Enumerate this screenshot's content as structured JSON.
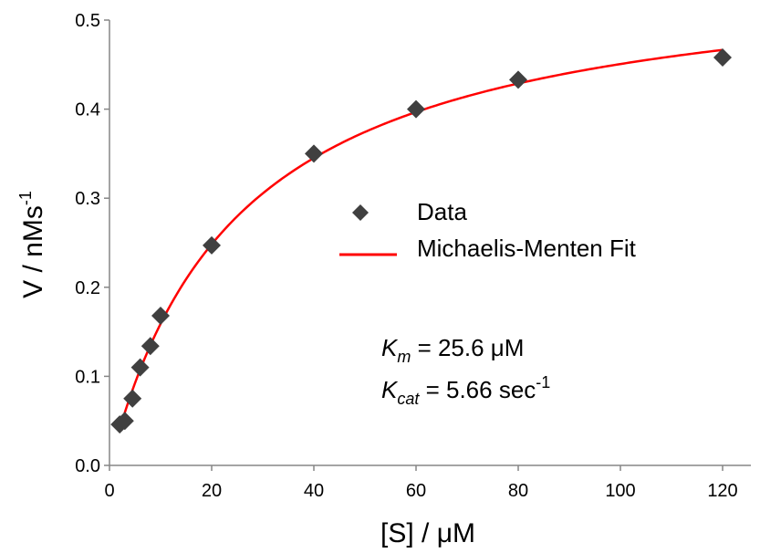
{
  "chart_data": {
    "type": "scatter",
    "title": "",
    "xlabel": "[S]  /  μM",
    "ylabel": {
      "main": "V / nMs",
      "sup": "-1"
    },
    "xlim": [
      0,
      125
    ],
    "ylim": [
      0,
      0.5
    ],
    "xticks": [
      0,
      20,
      40,
      60,
      80,
      100,
      120
    ],
    "yticks": [
      "0.0",
      "0.1",
      "0.2",
      "0.3",
      "0.4",
      "0.5"
    ],
    "grid": false,
    "legend_position": "center-right",
    "series": [
      {
        "name": "Data",
        "kind": "points",
        "marker": "diamond",
        "color": "#404040",
        "x": [
          2,
          3,
          4.5,
          6,
          8,
          10,
          20,
          40,
          60,
          80,
          120
        ],
        "y": [
          0.046,
          0.05,
          0.075,
          0.11,
          0.134,
          0.168,
          0.247,
          0.35,
          0.4,
          0.433,
          0.458
        ]
      },
      {
        "name": "Michaelis-Menten Fit",
        "kind": "line",
        "color": "#ff0000",
        "model": {
          "vmax": 0.566,
          "km": 25.6,
          "x_range": [
            2,
            120
          ]
        }
      }
    ],
    "annotations": [
      {
        "symbol": "K",
        "sub": "m",
        "text": "  = 25.6 μM"
      },
      {
        "symbol": "K",
        "sub": "cat",
        "text": " = 5.66 sec",
        "sup": "-1"
      }
    ]
  }
}
